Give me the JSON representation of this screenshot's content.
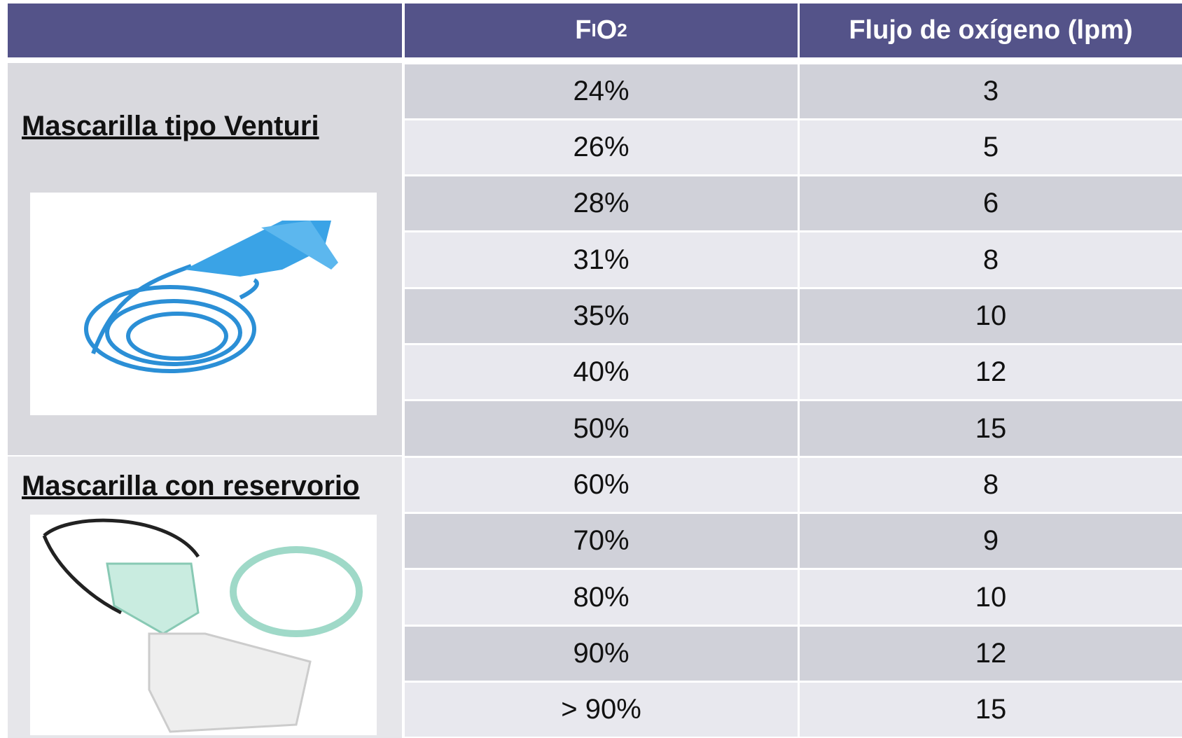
{
  "header": {
    "fio2": [
      "F",
      "I",
      "O",
      "2"
    ],
    "flow": "Flujo de oxígeno (lpm)"
  },
  "sections": [
    {
      "label": "Mascarilla tipo Venturi",
      "rows": [
        [
          "24%",
          3
        ],
        [
          "26%",
          5
        ],
        [
          "28%",
          6
        ],
        [
          "31%",
          8
        ],
        [
          "35%",
          10
        ],
        [
          "40%",
          12
        ],
        [
          "50%",
          15
        ]
      ]
    },
    {
      "label": "Mascarilla con reservorio",
      "rows": [
        [
          "60%",
          8
        ],
        [
          "70%",
          9
        ],
        [
          "80%",
          10
        ],
        [
          "90%",
          12
        ],
        [
          "> 90%",
          15
        ]
      ]
    }
  ]
}
